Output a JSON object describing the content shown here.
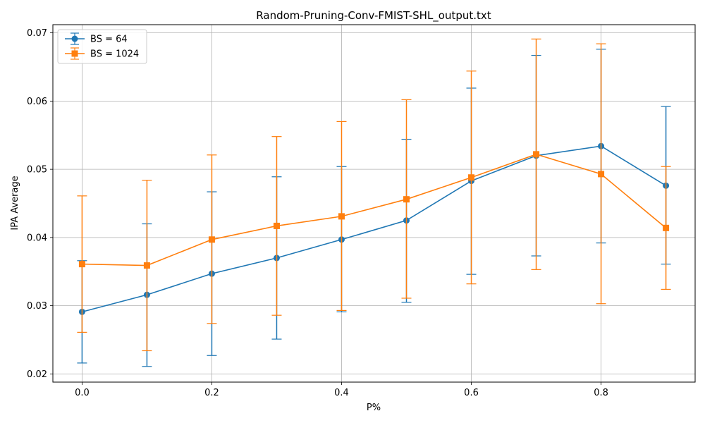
{
  "chart_data": {
    "type": "line",
    "title": "Random-Pruning-Conv-FMIST-SHL_output.txt",
    "xlabel": "P%",
    "ylabel": "IPA Average",
    "x": [
      0.0,
      0.1,
      0.2,
      0.3,
      0.4,
      0.5,
      0.6,
      0.7,
      0.8,
      0.9
    ],
    "x_tick_labels": [
      "0.0",
      "0.2",
      "0.4",
      "0.6",
      "0.8"
    ],
    "x_ticks": [
      0.0,
      0.2,
      0.4,
      0.6,
      0.8
    ],
    "y_tick_labels": [
      "0.02",
      "0.03",
      "0.04",
      "0.05",
      "0.06",
      "0.07"
    ],
    "y_ticks": [
      0.02,
      0.03,
      0.04,
      0.05,
      0.06,
      0.07
    ],
    "xlim": [
      -0.045,
      0.945
    ],
    "ylim": [
      0.0188,
      0.0712
    ],
    "grid": true,
    "legend_position": "top-left",
    "series": [
      {
        "name": "BS = 64",
        "color": "#1f77b4",
        "marker": "circle",
        "values": [
          0.0291,
          0.0316,
          0.0347,
          0.037,
          0.0397,
          0.0425,
          0.0483,
          0.052,
          0.0534,
          0.0476
        ],
        "err_low": [
          0.0216,
          0.0211,
          0.0227,
          0.0251,
          0.0291,
          0.0305,
          0.0346,
          0.0373,
          0.0392,
          0.0361
        ],
        "err_high": [
          0.0366,
          0.042,
          0.0467,
          0.0489,
          0.0504,
          0.0544,
          0.0619,
          0.0667,
          0.0676,
          0.0592
        ]
      },
      {
        "name": "BS = 1024",
        "color": "#ff7f0e",
        "marker": "square",
        "values": [
          0.0361,
          0.0359,
          0.0397,
          0.0417,
          0.0431,
          0.0456,
          0.0488,
          0.0522,
          0.0493,
          0.0414
        ],
        "err_low": [
          0.0261,
          0.0234,
          0.0274,
          0.0286,
          0.0293,
          0.0311,
          0.0332,
          0.0353,
          0.0303,
          0.0324
        ],
        "err_high": [
          0.0461,
          0.0484,
          0.0521,
          0.0548,
          0.057,
          0.0602,
          0.0644,
          0.0691,
          0.0684,
          0.0504
        ]
      }
    ]
  }
}
